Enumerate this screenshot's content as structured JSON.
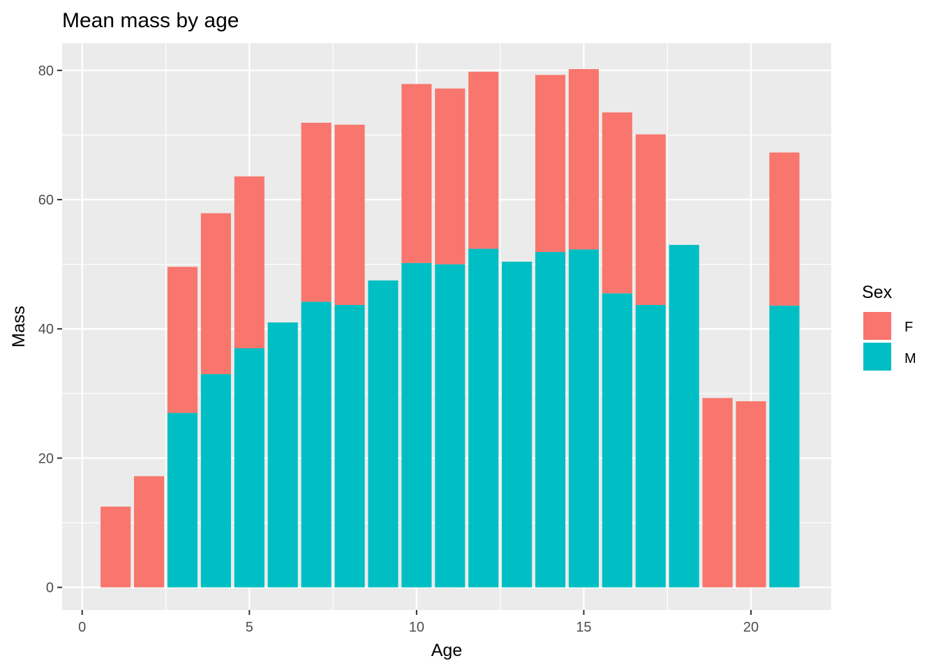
{
  "chart_data": {
    "type": "bar",
    "stacked": true,
    "title": "Mean mass by age",
    "xlabel": "Age",
    "ylabel": "Mass",
    "xlim": [
      -0.6,
      22.4
    ],
    "ylim": [
      -3.5,
      84.2
    ],
    "x_ticks": [
      0,
      5,
      10,
      15,
      20
    ],
    "y_ticks": [
      0,
      20,
      40,
      60,
      80
    ],
    "grid": true,
    "legend": {
      "title": "Sex",
      "position": "right",
      "entries": [
        "F",
        "M"
      ]
    },
    "colors": {
      "F": "#F8766D",
      "M": "#00BFC4",
      "panel": "#EBEBEB",
      "grid": "#FFFFFF"
    },
    "x": [
      1,
      2,
      3,
      4,
      5,
      6,
      7,
      8,
      9,
      10,
      11,
      12,
      13,
      14,
      15,
      16,
      17,
      18,
      19,
      20,
      21
    ],
    "series": [
      {
        "name": "M",
        "values": [
          0,
          0,
          27.0,
          33.0,
          37.0,
          41.0,
          44.2,
          43.7,
          47.5,
          50.2,
          50.0,
          52.4,
          50.4,
          51.9,
          52.3,
          45.5,
          43.7,
          53.0,
          0,
          0,
          43.6
        ]
      },
      {
        "name": "F",
        "values": [
          12.5,
          17.2,
          22.6,
          24.9,
          26.6,
          0,
          27.7,
          27.9,
          0,
          27.7,
          27.2,
          27.4,
          0,
          27.4,
          27.9,
          28.0,
          26.4,
          0,
          29.3,
          28.8,
          23.7
        ]
      }
    ]
  }
}
